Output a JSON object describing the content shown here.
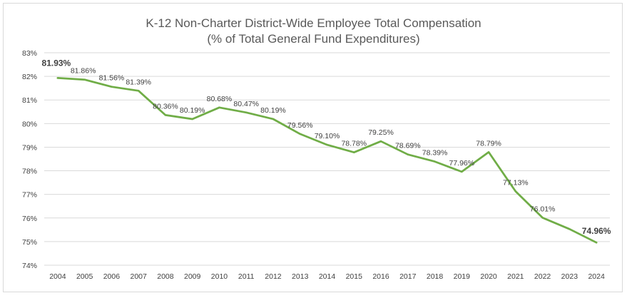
{
  "chart_data": {
    "type": "line",
    "title": "K-12 Non-Charter District-Wide Employee Total Compensation",
    "subtitle": "(% of Total General Fund Expenditures)",
    "xlabel": "",
    "ylabel": "",
    "categories": [
      "2004",
      "2005",
      "2006",
      "2007",
      "2008",
      "2009",
      "2010",
      "2011",
      "2012",
      "2013",
      "2014",
      "2015",
      "2016",
      "2017",
      "2018",
      "2019",
      "2020",
      "2021",
      "2022",
      "2023",
      "2024"
    ],
    "series": [
      {
        "values": [
          81.93,
          81.86,
          81.56,
          81.39,
          80.36,
          80.19,
          80.68,
          80.47,
          80.19,
          79.56,
          79.1,
          78.78,
          79.25,
          78.69,
          78.39,
          77.96,
          78.79,
          77.13,
          76.01,
          75.53,
          74.96
        ],
        "labels": [
          "81.93%",
          "81.86%",
          "81.56%",
          "81.39%",
          "80.36%",
          "80.19%",
          "80.68%",
          "80.47%",
          "80.19%",
          "79.56%",
          "79.10%",
          "78.78%",
          "79.25%",
          "78.69%",
          "78.39%",
          "77.96%",
          "78.79%",
          "77.13%",
          "76.01%",
          "",
          "74.96%"
        ],
        "bold_label_indices": [
          0,
          20
        ],
        "color": "#70ad47"
      }
    ],
    "ylim": [
      74,
      83
    ],
    "yticks": [
      74,
      75,
      76,
      77,
      78,
      79,
      80,
      81,
      82,
      83
    ],
    "ytick_labels": [
      "74%",
      "75%",
      "76%",
      "77%",
      "78%",
      "79%",
      "80%",
      "81%",
      "82%",
      "83%"
    ],
    "grid": true,
    "legend": "none"
  },
  "colors": {
    "line": "#70ad47",
    "grid": "#d9d9d9",
    "text": "#404040",
    "title": "#595959"
  }
}
